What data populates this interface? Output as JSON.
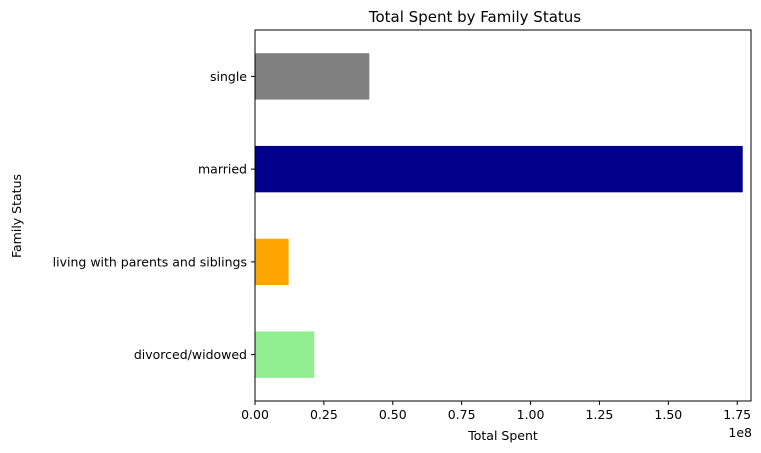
{
  "chart_data": {
    "type": "bar",
    "orientation": "horizontal",
    "title": "Total Spent by Family Status",
    "xlabel": "Total Spent",
    "ylabel": "Family Status",
    "offset_label": "1e8",
    "categories": [
      "divorced/widowed",
      "living with parents and siblings",
      "married",
      "single"
    ],
    "values": [
      21500000,
      12200000,
      177000000,
      41500000
    ],
    "colors": [
      "#90ee90",
      "#ffa500",
      "#00008b",
      "#808080"
    ],
    "xlim": [
      0,
      180000000
    ],
    "xticks": [
      0,
      25000000,
      50000000,
      75000000,
      100000000,
      125000000,
      150000000,
      175000000
    ],
    "xtick_labels": [
      "0.00",
      "0.25",
      "0.50",
      "0.75",
      "1.00",
      "1.25",
      "1.50",
      "1.75"
    ],
    "grid": false,
    "legend": "none"
  }
}
